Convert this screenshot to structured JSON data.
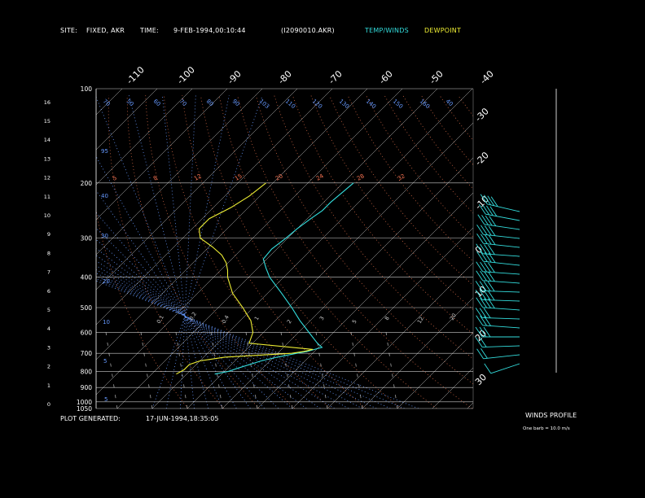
{
  "header": {
    "site_label": "SITE:",
    "site_value": "FIXED, AKR",
    "time_label": "TIME:",
    "time_value": "9-FEB-1994,00:10:44",
    "file_id": "(I2090010.AKR)",
    "legend_temp": "TEMP/WINDS",
    "legend_dewpoint": "DEWPOINT"
  },
  "footer": {
    "plot_generated_label": "PLOT GENERATED:",
    "plot_generated_value": "17-JUN-1994,18:35:05",
    "winds_profile_label": "WINDS PROFILE",
    "barb_note": "One barb = 10.0 m/s"
  },
  "colors": {
    "temp": "#33dddd",
    "dewpoint": "#eeee33",
    "isobar": "#ffffff",
    "isotherm": "#ffffff",
    "mixing_ratio": "#bbbbbb",
    "dry_adiabat": "#cc6644",
    "moist_adiabat": "#6699ff",
    "wind": "#33dddd"
  },
  "chart_data": {
    "type": "line",
    "subtype": "skew-T log-P diagram",
    "y_axis": {
      "label": "",
      "scale": "log",
      "unit": "hPa",
      "range": [
        1050,
        100
      ],
      "pressure_ticks": [
        100,
        200,
        300,
        400,
        500,
        600,
        700,
        800,
        900,
        1000,
        1050
      ],
      "height_ticks_km": [
        0,
        1,
        2,
        3,
        4,
        5,
        6,
        7,
        8,
        9,
        10,
        11,
        12,
        13,
        14,
        15,
        16
      ]
    },
    "isotherm_labels_top": [
      -110,
      -100,
      -90,
      -80,
      -70,
      -60,
      -50,
      -40
    ],
    "isotherm_labels_right": [
      -30,
      -20,
      -10,
      0,
      10,
      20,
      30
    ],
    "dry_adiabat_labels": [
      5,
      8,
      12,
      15,
      20,
      24,
      28,
      32
    ],
    "moist_adiabat_labels": [
      95,
      70,
      50,
      60,
      70,
      80,
      90,
      103,
      110,
      120,
      130,
      140,
      150,
      160,
      40,
      30,
      20,
      10,
      5
    ],
    "mixing_ratio_labels": [
      0.1,
      0.2,
      0.4,
      1.0,
      2.0,
      3.0,
      5.0,
      8.0,
      12.0,
      20.0
    ],
    "series": [
      {
        "name": "TEMP/WINDS",
        "points": [
          {
            "p": 200,
            "t": -47
          },
          {
            "p": 215,
            "t": -47.5
          },
          {
            "p": 230,
            "t": -48
          },
          {
            "p": 245,
            "t": -48
          },
          {
            "p": 260,
            "t": -49
          },
          {
            "p": 280,
            "t": -50
          },
          {
            "p": 300,
            "t": -50.5
          },
          {
            "p": 325,
            "t": -51.5
          },
          {
            "p": 350,
            "t": -51
          },
          {
            "p": 375,
            "t": -47.5
          },
          {
            "p": 400,
            "t": -44
          },
          {
            "p": 450,
            "t": -36
          },
          {
            "p": 500,
            "t": -29
          },
          {
            "p": 550,
            "t": -23
          },
          {
            "p": 600,
            "t": -17
          },
          {
            "p": 650,
            "t": -11.5
          },
          {
            "p": 670,
            "t": -9
          },
          {
            "p": 690,
            "t": -12
          },
          {
            "p": 700,
            "t": -14.5
          },
          {
            "p": 720,
            "t": -19
          },
          {
            "p": 740,
            "t": -22.5
          },
          {
            "p": 780,
            "t": -27
          },
          {
            "p": 800,
            "t": -29
          },
          {
            "p": 815,
            "t": -32
          }
        ]
      },
      {
        "name": "DEWPOINT",
        "points": [
          {
            "p": 200,
            "t": -72
          },
          {
            "p": 220,
            "t": -73
          },
          {
            "p": 240,
            "t": -75
          },
          {
            "p": 260,
            "t": -78
          },
          {
            "p": 280,
            "t": -78
          },
          {
            "p": 300,
            "t": -75
          },
          {
            "p": 320,
            "t": -69
          },
          {
            "p": 340,
            "t": -64
          },
          {
            "p": 360,
            "t": -60.5
          },
          {
            "p": 380,
            "t": -58
          },
          {
            "p": 400,
            "t": -56
          },
          {
            "p": 450,
            "t": -50
          },
          {
            "p": 500,
            "t": -43
          },
          {
            "p": 550,
            "t": -37
          },
          {
            "p": 600,
            "t": -33
          },
          {
            "p": 650,
            "t": -31
          },
          {
            "p": 680,
            "t": -11
          },
          {
            "p": 690,
            "t": -13
          },
          {
            "p": 700,
            "t": -16
          },
          {
            "p": 720,
            "t": -34
          },
          {
            "p": 740,
            "t": -40
          },
          {
            "p": 760,
            "t": -42
          },
          {
            "p": 790,
            "t": -42
          },
          {
            "p": 815,
            "t": -43
          }
        ]
      }
    ],
    "winds": [
      {
        "p": 120,
        "dir": 300,
        "speed": 40
      },
      {
        "p": 140,
        "dir": 295,
        "speed": 35
      },
      {
        "p": 160,
        "dir": 290,
        "speed": 40
      },
      {
        "p": 180,
        "dir": 285,
        "speed": 35
      },
      {
        "p": 200,
        "dir": 285,
        "speed": 35
      },
      {
        "p": 230,
        "dir": 280,
        "speed": 40
      },
      {
        "p": 260,
        "dir": 285,
        "speed": 35
      },
      {
        "p": 300,
        "dir": 280,
        "speed": 40
      },
      {
        "p": 340,
        "dir": 280,
        "speed": 35
      },
      {
        "p": 380,
        "dir": 275,
        "speed": 35
      },
      {
        "p": 420,
        "dir": 275,
        "speed": 40
      },
      {
        "p": 460,
        "dir": 280,
        "speed": 35
      },
      {
        "p": 500,
        "dir": 275,
        "speed": 30
      },
      {
        "p": 550,
        "dir": 280,
        "speed": 30
      },
      {
        "p": 600,
        "dir": 270,
        "speed": 25
      },
      {
        "p": 650,
        "dir": 265,
        "speed": 20
      },
      {
        "p": 700,
        "dir": 255,
        "speed": 15
      },
      {
        "p": 750,
        "dir": 230,
        "speed": 10
      }
    ]
  }
}
